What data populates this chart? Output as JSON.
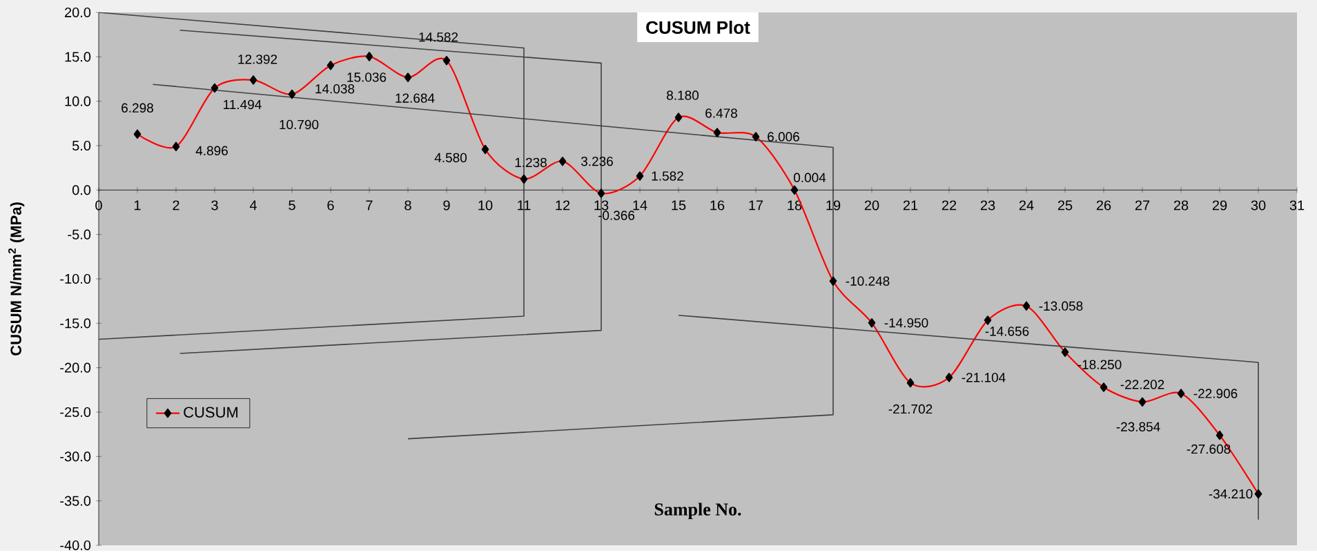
{
  "chart_data": {
    "type": "line",
    "title": "CUSUM Plot",
    "xlabel": "Sample No.",
    "ylabel": "CUSUM N/mm$^{2}$ (MPa)",
    "x": [
      1,
      2,
      3,
      4,
      5,
      6,
      7,
      8,
      9,
      10,
      11,
      12,
      13,
      14,
      15,
      16,
      17,
      18,
      19,
      20,
      21,
      22,
      23,
      24,
      25,
      26,
      27,
      28,
      29,
      30
    ],
    "series": [
      {
        "name": "CUSUM",
        "color": "#ff0000",
        "marker": "diamond",
        "values": [
          6.298,
          4.896,
          11.494,
          12.392,
          10.79,
          14.038,
          15.036,
          12.684,
          14.582,
          4.58,
          1.238,
          3.236,
          -0.366,
          1.582,
          8.18,
          6.478,
          6.006,
          0.004,
          -10.248,
          -14.95,
          -21.702,
          -21.104,
          -14.656,
          -13.058,
          -18.25,
          -22.202,
          -23.854,
          -22.906,
          -27.608,
          -34.21
        ],
        "value_labels": [
          "6.298",
          "4.896",
          "11.494",
          "12.392",
          "10.790",
          "14.038",
          "15.036",
          "12.684",
          "14.582",
          "4.580",
          "1.238",
          "3.236",
          "-0.366",
          "1.582",
          "8.180",
          "6.478",
          "6.006",
          "0.004",
          "-10.248",
          "-14.950",
          "-21.702",
          "-21.104",
          "-14.656",
          "-13.058",
          "-18.250",
          "-22.202",
          "-23.854",
          "-22.906",
          "-27.608",
          "-34.210"
        ]
      },
      {
        "type": "line",
        "color": "#404040",
        "marker": "none",
        "x": [
          0,
          11,
          11,
          0
        ],
        "values": [
          20,
          16,
          -14.2,
          -16.8
        ]
      },
      {
        "type": "line",
        "color": "#404040",
        "marker": "none",
        "x": [
          2.1,
          13,
          13,
          2.1
        ],
        "values": [
          18,
          14.3,
          -15.8,
          -18.4
        ]
      },
      {
        "type": "line",
        "color": "#404040",
        "marker": "none",
        "x": [
          1.4,
          19,
          19,
          8
        ],
        "values": [
          11.9,
          4.8,
          -25.3,
          -28.0
        ]
      },
      {
        "type": "line",
        "color": "#404040",
        "marker": "none",
        "x": [
          15,
          30,
          30
        ],
        "values": [
          -14.1,
          -19.4,
          -37.1
        ]
      }
    ],
    "xlim": [
      0,
      31
    ],
    "xticks": [
      0,
      1,
      2,
      3,
      4,
      5,
      6,
      7,
      8,
      9,
      10,
      11,
      12,
      13,
      14,
      15,
      16,
      17,
      18,
      19,
      20,
      21,
      22,
      23,
      24,
      25,
      26,
      27,
      28,
      29,
      30,
      31
    ],
    "ylim": [
      -40,
      20
    ],
    "yticks": [
      {
        "value": -40,
        "label": "-40.0"
      },
      {
        "value": -35,
        "label": "-35.0"
      },
      {
        "value": -30,
        "label": "-30.0"
      },
      {
        "value": -25,
        "label": "-25.0"
      },
      {
        "value": -20,
        "label": "-20.0"
      },
      {
        "value": -15,
        "label": "-15.0"
      },
      {
        "value": -10,
        "label": "-10.0"
      },
      {
        "value": -5,
        "label": "-5.0"
      },
      {
        "value": 0,
        "label": "0.0"
      },
      {
        "value": 5,
        "label": "5.0"
      },
      {
        "value": 10,
        "label": "10.0"
      },
      {
        "value": 15,
        "label": "15.0"
      },
      {
        "value": 20,
        "label": "20.0"
      }
    ],
    "legend": "bottom left",
    "grid": false
  }
}
